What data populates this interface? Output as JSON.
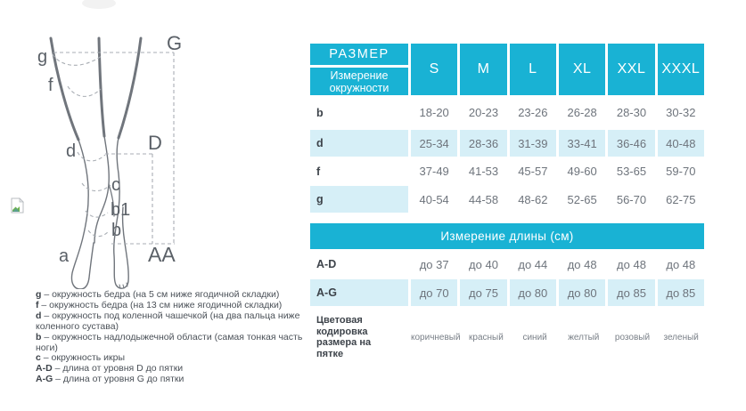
{
  "diagram": {
    "point_labels": {
      "g": "g",
      "f": "f",
      "d": "d",
      "c": "c",
      "b1": "b1",
      "b": "b",
      "a": "a",
      "G": "G",
      "D": "D",
      "AA": "AA"
    },
    "legend": [
      {
        "key": "g",
        "text": "– окружность бедра (на 5 см ниже ягодичной складки)"
      },
      {
        "key": "f",
        "text": "– окружность бедра (на 13 см ниже ягодичной складки)"
      },
      {
        "key": "d",
        "text": "– окружность под коленной чашечкой (на два пальца ниже коленного сустава)"
      },
      {
        "key": "b",
        "text": "– окружность надлодыжечной области (самая тонкая часть ноги)"
      },
      {
        "key": "c",
        "text": "– окружность икры"
      },
      {
        "key": "A-D",
        "text": "– длина от уровня D до пятки"
      },
      {
        "key": "A-G",
        "text": "– длина от уровня G до пятки"
      }
    ]
  },
  "table": {
    "header": {
      "title": "РАЗМЕР",
      "subtitle": "Измерение окружности"
    },
    "sizes": [
      "S",
      "M",
      "L",
      "XL",
      "XXL",
      "XXXL"
    ],
    "circumference_rows": [
      {
        "label": "b",
        "striped": "none",
        "values": [
          "18-20",
          "20-23",
          "23-26",
          "26-28",
          "28-30",
          "30-32"
        ]
      },
      {
        "label": "d",
        "striped": "full",
        "values": [
          "25-34",
          "28-36",
          "31-39",
          "33-41",
          "36-46",
          "40-48"
        ]
      },
      {
        "label": "f",
        "striped": "none",
        "values": [
          "37-49",
          "41-53",
          "45-57",
          "49-60",
          "53-65",
          "59-70"
        ]
      },
      {
        "label": "g",
        "striped": "label-only",
        "values": [
          "40-54",
          "44-58",
          "48-62",
          "52-65",
          "56-70",
          "62-75"
        ]
      }
    ],
    "length_section_title": "Измерение длины (см)",
    "length_rows": [
      {
        "label": "A-D",
        "striped": "none",
        "values": [
          "до 37",
          "до 40",
          "до 44",
          "до 48",
          "до 48",
          "до 48"
        ]
      },
      {
        "label": "A-G",
        "striped": "full",
        "values": [
          "до 70",
          "до 75",
          "до 80",
          "до 80",
          "до 85",
          "до 85"
        ]
      }
    ],
    "color_row": {
      "label": "Цветовая кодировка размера на пятке",
      "values": [
        "коричневый",
        "красный",
        "синий",
        "желтый",
        "розовый",
        "зеленый"
      ]
    }
  },
  "colors": {
    "teal": "#19b2d4",
    "stripe": "#d6eff7"
  }
}
